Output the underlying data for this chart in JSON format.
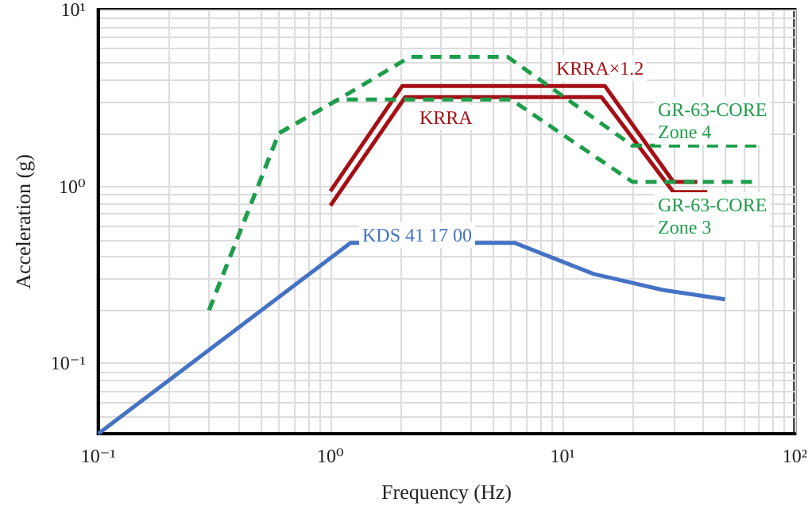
{
  "chart_data": {
    "type": "line",
    "xlabel": "Frequency (Hz)",
    "ylabel": "Acceleration (g)",
    "log": "xy",
    "grid": true,
    "legend": false,
    "marker": "none",
    "xlim": [
      0.1,
      100
    ],
    "ylim": [
      0.04,
      10
    ],
    "xticks": [
      {
        "value": 0.1,
        "label": "10⁻¹"
      },
      {
        "value": 1,
        "label": "10⁰"
      },
      {
        "value": 10,
        "label": "10¹"
      },
      {
        "value": 100,
        "label": "10²"
      }
    ],
    "yticks": [
      {
        "value": 0.1,
        "label": "10⁻¹"
      },
      {
        "value": 1,
        "label": "10⁰"
      },
      {
        "value": 10,
        "label": "10¹"
      }
    ],
    "series": [
      {
        "name": "KDS 41 17 00",
        "color": "#4472c4",
        "line_style": "solid",
        "x": [
          0.1,
          1.22,
          6.2,
          13.6,
          27,
          50
        ],
        "values": [
          0.04,
          0.48,
          0.48,
          0.32,
          0.26,
          0.23
        ]
      },
      {
        "name": "KRRA×1.2",
        "color": "#a50f15",
        "line_style": "solid",
        "x": [
          1,
          2.04,
          15.2,
          30,
          38
        ],
        "values": [
          0.94,
          3.7,
          3.7,
          1.06,
          1.06
        ]
      },
      {
        "name": "KRRA",
        "color": "#a50f15",
        "line_style": "solid",
        "x": [
          1,
          2.1,
          14.7,
          30,
          42
        ],
        "values": [
          0.78,
          3.2,
          3.2,
          0.93,
          0.93
        ]
      },
      {
        "name": "GR-63-CORE\nZone 4",
        "color": "#1e9e4a",
        "line_style": "dashed",
        "x": [
          0.3,
          0.6,
          1.08,
          2.2,
          5.8,
          20,
          70
        ],
        "values": [
          0.2,
          2,
          3.1,
          5.4,
          5.4,
          1.7,
          1.7
        ]
      },
      {
        "name": "GR-63-CORE\nZone 3",
        "color": "#1e9e4a",
        "line_style": "dashed",
        "x": [
          0.3,
          0.6,
          1.08,
          6,
          20,
          68
        ],
        "values": [
          0.2,
          2,
          3.1,
          3.1,
          1.06,
          1.06
        ]
      }
    ]
  }
}
